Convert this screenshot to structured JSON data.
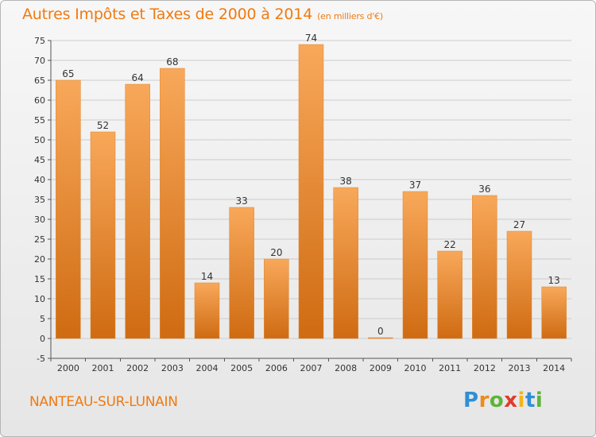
{
  "title": "Autres Impôts et Taxes de 2000 à 2014",
  "unit": "(en milliers d'€)",
  "commune": "NANTEAU-SUR-LUNAIN",
  "logo": {
    "letters": [
      "P",
      "r",
      "o",
      "x",
      "i",
      "t",
      "i"
    ],
    "colors": [
      "#2f8fd6",
      "#f08a1c",
      "#5db53a",
      "#e23a2a",
      "#f2b51c",
      "#2f8fd6",
      "#5db53a"
    ]
  },
  "colors": {
    "bar_light": "#f8a85a",
    "bar_dark": "#cf6b12",
    "title": "#f07a10",
    "grid": "#cccccc"
  },
  "chart_data": {
    "type": "bar",
    "categories": [
      "2000",
      "2001",
      "2002",
      "2003",
      "2004",
      "2005",
      "2006",
      "2007",
      "2008",
      "2009",
      "2010",
      "2011",
      "2012",
      "2013",
      "2014"
    ],
    "values": [
      65,
      52,
      64,
      68,
      14,
      33,
      20,
      74,
      38,
      0,
      37,
      22,
      36,
      27,
      13
    ],
    "ylim": [
      -5,
      75
    ],
    "yticks": [
      -5,
      0,
      5,
      10,
      15,
      20,
      25,
      30,
      35,
      40,
      45,
      50,
      55,
      60,
      65,
      70,
      75
    ],
    "grid": true,
    "data_labels": true
  }
}
